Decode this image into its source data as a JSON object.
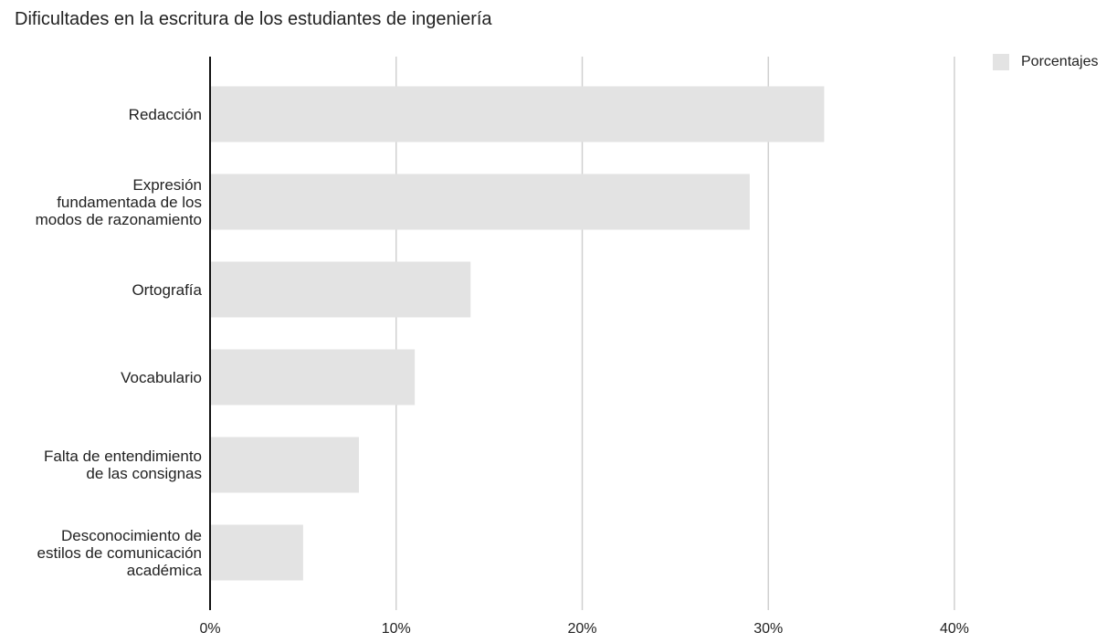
{
  "chart_data": {
    "type": "bar",
    "orientation": "horizontal",
    "title": "Dificultades en la escritura de los estudiantes de ingeniería",
    "categories": [
      [
        "Redacción"
      ],
      [
        "Expresión",
        "fundamentada de los",
        "modos de razonamiento"
      ],
      [
        "Ortografía"
      ],
      [
        "Vocabulario"
      ],
      [
        "Falta de entendimiento",
        "de las consignas"
      ],
      [
        "Desconocimiento de",
        "estilos de comunicación",
        "académica"
      ]
    ],
    "series": [
      {
        "name": "Porcentajes",
        "values": [
          33,
          29,
          14,
          11,
          8,
          5
        ],
        "color": "#e3e3e3"
      }
    ],
    "xlim": [
      0,
      40
    ],
    "xticks": [
      0,
      10,
      20,
      30,
      40
    ],
    "xtick_labels": [
      "0%",
      "10%",
      "20%",
      "30%",
      "40%"
    ],
    "grid": true,
    "legend_position": "top-right",
    "grid_color": "#d0d0d0",
    "axis_color": "#111111"
  }
}
